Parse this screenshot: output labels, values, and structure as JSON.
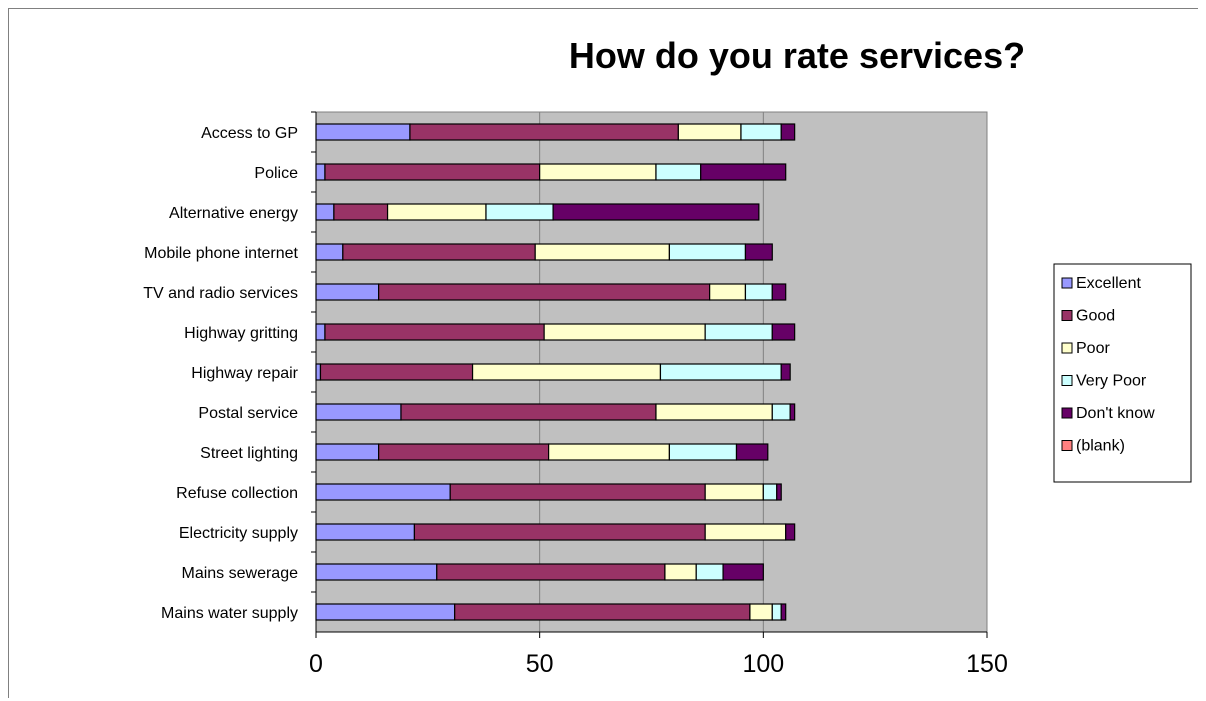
{
  "chart_data": {
    "type": "bar",
    "orientation": "horizontal",
    "stacked": true,
    "title": "How do you rate services?",
    "xlabel": "",
    "ylabel": "",
    "xlim": [
      0,
      150
    ],
    "xticks": [
      0,
      50,
      100,
      150
    ],
    "grid": true,
    "legend_position": "right",
    "plot_background": "#c0c0c0",
    "categories": [
      "Access to GP",
      "Police",
      "Alternative energy",
      "Mobile phone internet",
      "TV and radio services",
      "Highway gritting",
      "Highway repair",
      "Postal service",
      "Street lighting",
      "Refuse collection",
      "Electricity supply",
      "Mains sewerage",
      "Mains water supply"
    ],
    "series": [
      {
        "name": "Excellent",
        "color": "#9999ff",
        "values": [
          21,
          2,
          4,
          6,
          14,
          2,
          1,
          19,
          14,
          30,
          22,
          27,
          31
        ]
      },
      {
        "name": "Good",
        "color": "#993366",
        "values": [
          60,
          48,
          12,
          43,
          74,
          49,
          34,
          57,
          38,
          57,
          65,
          51,
          66
        ]
      },
      {
        "name": "Poor",
        "color": "#ffffcc",
        "values": [
          14,
          26,
          22,
          30,
          8,
          36,
          42,
          26,
          27,
          13,
          18,
          7,
          5
        ]
      },
      {
        "name": "Very Poor",
        "color": "#ccffff",
        "values": [
          9,
          10,
          15,
          17,
          6,
          15,
          27,
          4,
          15,
          3,
          0,
          6,
          2
        ]
      },
      {
        "name": "Don't know",
        "color": "#660066",
        "values": [
          3,
          19,
          46,
          6,
          3,
          5,
          2,
          1,
          7,
          1,
          2,
          9,
          1
        ]
      },
      {
        "name": "(blank)",
        "color": "#ff8080",
        "values": [
          0,
          0,
          0,
          0,
          0,
          0,
          0,
          0,
          0,
          0,
          0,
          0,
          0
        ]
      }
    ]
  }
}
